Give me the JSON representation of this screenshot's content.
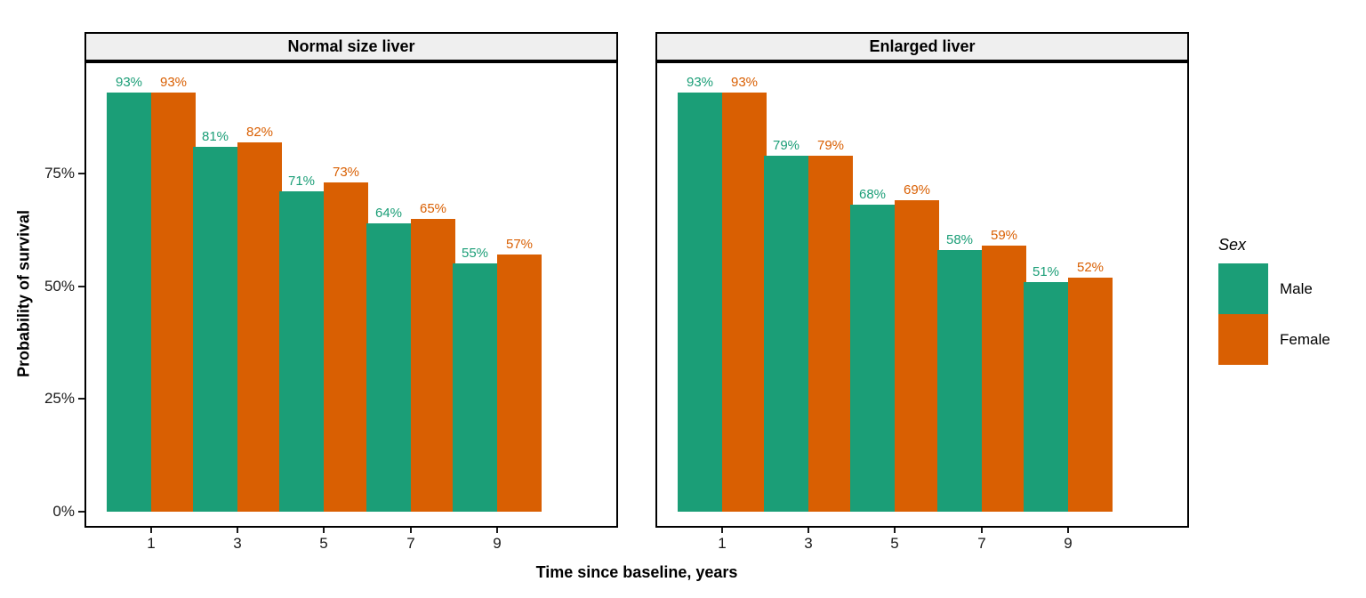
{
  "chart_data": {
    "type": "bar",
    "xlabel": "Time since baseline, years",
    "ylabel": "Probability of survival",
    "categories": [
      "1",
      "3",
      "5",
      "7",
      "9"
    ],
    "y_ticks": [
      {
        "value": 0,
        "label": "0%"
      },
      {
        "value": 25,
        "label": "25%"
      },
      {
        "value": 50,
        "label": "50%"
      },
      {
        "value": 75,
        "label": "75%"
      }
    ],
    "ylim": [
      0,
      100
    ],
    "grid": false,
    "legend_position": "right",
    "legend_title": "Sex",
    "value_label_suffix": "%",
    "series": [
      {
        "name": "Male",
        "color": "#1B9E77"
      },
      {
        "name": "Female",
        "color": "#D95F02"
      }
    ],
    "facets": [
      {
        "title": "Normal size liver",
        "values": {
          "Male": [
            93,
            81,
            71,
            64,
            55
          ],
          "Female": [
            93,
            82,
            73,
            65,
            57
          ]
        }
      },
      {
        "title": "Enlarged liver",
        "values": {
          "Male": [
            93,
            79,
            68,
            58,
            51
          ],
          "Female": [
            93,
            79,
            69,
            59,
            52
          ]
        }
      }
    ],
    "colors": {
      "strip_background": "#EFEFEF",
      "panel_border": "#000000",
      "axis_text": "#1a1a1a"
    }
  }
}
